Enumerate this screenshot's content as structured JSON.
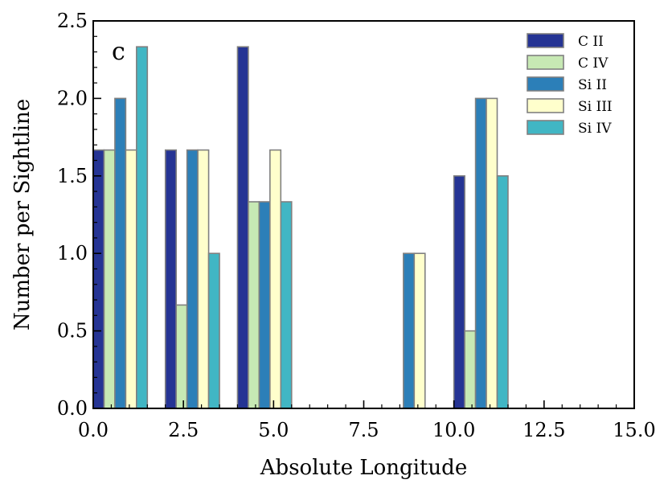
{
  "chart_data": {
    "type": "bar",
    "panel_label": "c",
    "xlabel": "Absolute Longitude",
    "ylabel": "Number per Sightline",
    "xlim": [
      0,
      15
    ],
    "ylim": [
      0,
      2.5
    ],
    "x_ticks": [
      0.0,
      2.5,
      5.0,
      7.5,
      10.0,
      12.5,
      15.0
    ],
    "x_tick_labels": [
      "0.0",
      "2.5",
      "5.0",
      "7.5",
      "10.0",
      "12.5",
      "15.0"
    ],
    "y_ticks": [
      0.0,
      0.5,
      1.0,
      1.5,
      2.0,
      2.5
    ],
    "y_tick_labels": [
      "0.0",
      "0.5",
      "1.0",
      "1.5",
      "2.0",
      "2.5"
    ],
    "bar_width": 0.3,
    "grid": false,
    "legend_position": "top-right",
    "bin_starts": [
      0,
      2,
      4,
      6,
      8,
      10
    ],
    "series": [
      {
        "name": "C II",
        "color": "#253494",
        "values": [
          1.667,
          1.667,
          2.333,
          0,
          0,
          1.5
        ]
      },
      {
        "name": "C IV",
        "color": "#c7e9b4",
        "values": [
          1.667,
          0.667,
          1.333,
          0,
          0,
          0.5
        ]
      },
      {
        "name": "Si II",
        "color": "#2c7fb8",
        "values": [
          2.0,
          1.667,
          1.333,
          0,
          1.0,
          2.0
        ]
      },
      {
        "name": "Si III",
        "color": "#ffffcc",
        "values": [
          1.667,
          1.667,
          1.667,
          0,
          1.0,
          2.0
        ]
      },
      {
        "name": "Si IV",
        "color": "#41b6c4",
        "values": [
          2.333,
          1.0,
          1.333,
          0,
          0,
          1.5
        ]
      }
    ]
  }
}
